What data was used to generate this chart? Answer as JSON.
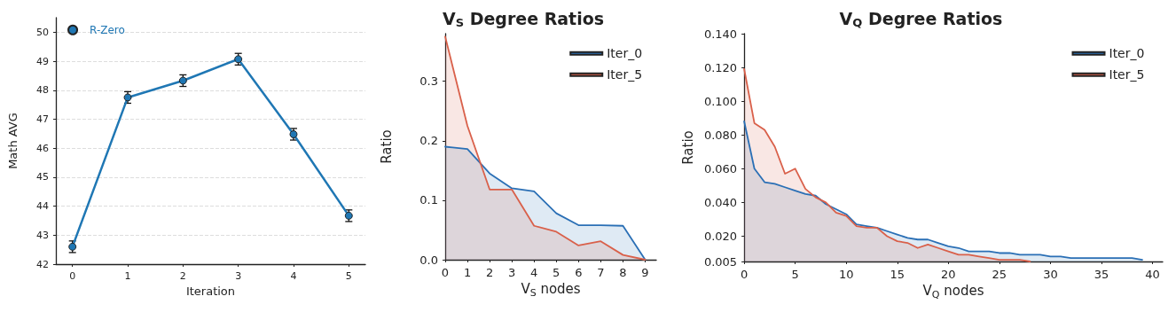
{
  "chart_data": [
    {
      "type": "line",
      "xlabel": "Iteration",
      "ylabel": "Math AVG",
      "x": [
        0,
        1,
        2,
        3,
        4,
        5
      ],
      "xlim": [
        -0.3,
        5.3
      ],
      "xticks": [
        0,
        1,
        2,
        3,
        4,
        5
      ],
      "ylim": [
        42,
        50.5
      ],
      "yticks": [
        42,
        43,
        44,
        45,
        46,
        47,
        48,
        49,
        50
      ],
      "grid": "y",
      "legend": "top left",
      "marker": "circle",
      "series": [
        {
          "name": "R-Zero",
          "color": "#1f77b4",
          "values": [
            42.6,
            47.75,
            48.33,
            49.07,
            46.48,
            43.67
          ],
          "errors": [
            0.2,
            0.2,
            0.2,
            0.2,
            0.2,
            0.2
          ]
        }
      ]
    },
    {
      "type": "area",
      "title": "V$_{S}$ Degree Ratios",
      "xlabel": "V$_{S}$ nodes",
      "ylabel": "Ratio",
      "x": [
        0,
        1,
        2,
        3,
        4,
        5,
        6,
        7,
        8,
        9
      ],
      "xlim": [
        0,
        9.5
      ],
      "xticks": [
        0,
        1,
        2,
        3,
        4,
        5,
        6,
        7,
        8,
        9
      ],
      "ylim": [
        0,
        0.38
      ],
      "yticks": [
        {
          "value": 0,
          "label": "0.0"
        },
        0.1,
        0.2,
        0.3
      ],
      "legend": "top right",
      "series": [
        {
          "name": "Iter_0",
          "color": "#2a6fb5",
          "values": [
            0.19,
            0.186,
            0.145,
            0.12,
            0.115,
            0.078,
            0.058,
            0.058,
            0.057,
            0.0
          ]
        },
        {
          "name": "Iter_5",
          "color": "#d9604a",
          "values": [
            0.375,
            0.225,
            0.118,
            0.118,
            0.057,
            0.047,
            0.024,
            0.031,
            0.008,
            0.0
          ]
        }
      ]
    },
    {
      "type": "area",
      "title": "V$_{Q}$ Degree Ratios",
      "xlabel": "V$_{Q}$ nodes",
      "ylabel": "Ratio",
      "xlim": [
        0,
        41
      ],
      "xticks": [
        0,
        5,
        10,
        15,
        20,
        25,
        30,
        35,
        40
      ],
      "ylim": [
        0.005,
        0.14
      ],
      "yticks": [
        {
          "value": 0.005,
          "label": "0.005"
        },
        {
          "value": 0.02,
          "label": "0.020"
        },
        {
          "value": 0.04,
          "label": "0.040"
        },
        {
          "value": 0.06,
          "label": "0.060"
        },
        {
          "value": 0.08,
          "label": "0.080"
        },
        {
          "value": 0.1,
          "label": "0.100"
        },
        {
          "value": 0.12,
          "label": "0.120"
        },
        {
          "value": 0.14,
          "label": "0.140"
        }
      ],
      "legend": "top right",
      "series": [
        {
          "name": "Iter_0",
          "color": "#2a6fb5",
          "x": [
            0,
            1,
            2,
            3,
            4,
            5,
            6,
            7,
            8,
            9,
            10,
            11,
            12,
            13,
            14,
            15,
            16,
            17,
            18,
            19,
            20,
            21,
            22,
            23,
            24,
            25,
            26,
            27,
            28,
            29,
            30,
            31,
            32,
            33,
            34,
            35,
            36,
            37,
            38,
            39
          ],
          "values": [
            0.088,
            0.06,
            0.052,
            0.051,
            0.049,
            0.047,
            0.045,
            0.044,
            0.039,
            0.036,
            0.033,
            0.027,
            0.026,
            0.025,
            0.023,
            0.021,
            0.019,
            0.018,
            0.018,
            0.016,
            0.014,
            0.013,
            0.011,
            0.011,
            0.011,
            0.01,
            0.01,
            0.009,
            0.009,
            0.009,
            0.008,
            0.008,
            0.007,
            0.007,
            0.007,
            0.007,
            0.007,
            0.007,
            0.007,
            0.006
          ]
        },
        {
          "name": "Iter_5",
          "color": "#d9604a",
          "x": [
            0,
            1,
            2,
            3,
            4,
            5,
            6,
            7,
            8,
            9,
            10,
            11,
            12,
            13,
            14,
            15,
            16,
            17,
            18,
            19,
            20,
            21,
            22,
            23,
            24,
            25,
            26,
            27,
            28
          ],
          "values": [
            0.119,
            0.087,
            0.083,
            0.073,
            0.057,
            0.06,
            0.048,
            0.043,
            0.04,
            0.034,
            0.032,
            0.026,
            0.025,
            0.025,
            0.02,
            0.017,
            0.016,
            0.013,
            0.015,
            0.013,
            0.011,
            0.009,
            0.009,
            0.008,
            0.007,
            0.006,
            0.006,
            0.006,
            0.005
          ]
        }
      ]
    }
  ]
}
